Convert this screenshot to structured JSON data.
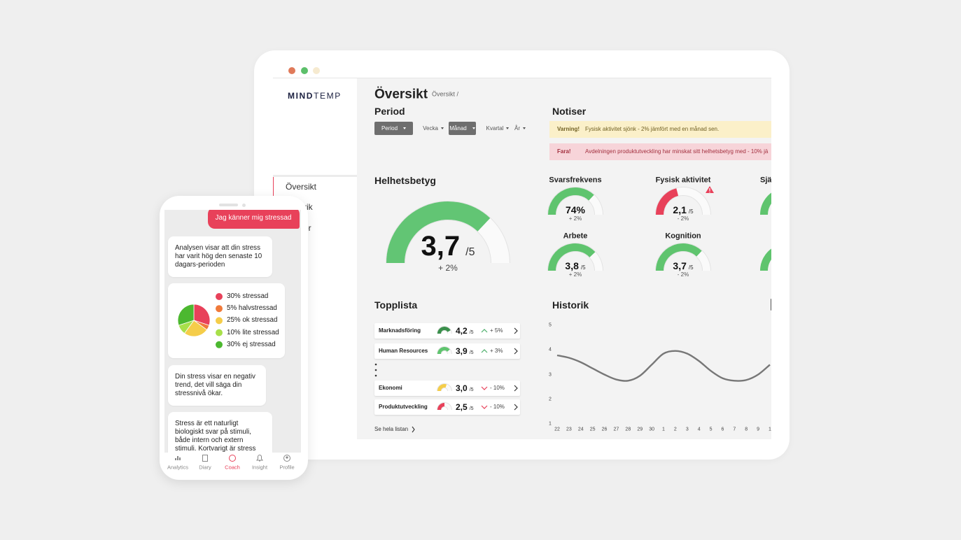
{
  "window": {
    "logo": {
      "bold": "MIND",
      "light": "TEMP"
    },
    "nav": [
      "Översikt",
      "rik",
      "ör"
    ]
  },
  "header": {
    "title": "Översikt",
    "breadcrumb": "Översikt /"
  },
  "period": {
    "title": "Period",
    "options": [
      "Period",
      "Vecka",
      "Månad",
      "Kvartal",
      "År"
    ]
  },
  "notices": {
    "title": "Notiser",
    "items": [
      {
        "label": "Varning!",
        "text": "Fysisk aktivitet sjönk - 2% jämfört med en månad sen."
      },
      {
        "label": "Fara!",
        "text": "Avdelningen produktutveckling har minskat sitt helhetsbetyg med - 10% jä"
      }
    ]
  },
  "overall": {
    "title": "Helhetsbetyg",
    "score": {
      "value": 3.7,
      "label": "3,7"
    },
    "scale": {
      "value": 5,
      "label": "/5"
    },
    "change": "+ 2%",
    "color": "#62c574"
  },
  "metrics": [
    {
      "title": "Svarsfrekvens",
      "score": {
        "value": 74,
        "label": "74%"
      },
      "scale": {
        "value": 100
      },
      "change": "+ 2%",
      "color": "#5fc46e"
    },
    {
      "title": "Fysisk aktivitet",
      "score": {
        "value": 2.1,
        "label": "2,1"
      },
      "scale": {
        "value": 5,
        "label": "/5"
      },
      "change": "- 2%",
      "color": "#e8415a",
      "alert": true
    },
    {
      "title": "Arbete",
      "score": {
        "value": 3.8,
        "label": "3,8"
      },
      "scale": {
        "value": 5,
        "label": "/5"
      },
      "change": "+ 2%",
      "color": "#5fc46e"
    },
    {
      "title": "Kognition",
      "score": {
        "value": 3.7,
        "label": "3,7"
      },
      "scale": {
        "value": 5,
        "label": "/5"
      },
      "change": "- 2%",
      "color": "#5fc46e"
    },
    {
      "title": "Sjä"
    }
  ],
  "ranking": {
    "title": "Topplista",
    "rows": [
      {
        "name": "Marknadsföring",
        "score": {
          "value": 4.2,
          "label": "4,2"
        },
        "scale": {
          "value": 5,
          "label": "/5"
        },
        "change": "+ 5%",
        "trend": "up",
        "color": "#3a8f4b"
      },
      {
        "name": "Human Resources",
        "score": {
          "value": 3.9,
          "label": "3,9"
        },
        "scale": {
          "value": 5,
          "label": "/5"
        },
        "change": "+ 3%",
        "trend": "up",
        "color": "#5fc46e"
      },
      {
        "name": "Ekonomi",
        "score": {
          "value": 3.0,
          "label": "3,0"
        },
        "scale": {
          "value": 5,
          "label": "/5"
        },
        "change": "- 10%",
        "trend": "down",
        "color": "#f5cd4a"
      },
      {
        "name": "Produktutveckling",
        "score": {
          "value": 2.5,
          "label": "2,5"
        },
        "scale": {
          "value": 5,
          "label": "/5"
        },
        "change": "- 10%",
        "trend": "down",
        "color": "#e8415a"
      }
    ],
    "more": "Se hela listan"
  },
  "history": {
    "title": "Historik",
    "chart": {
      "type": "line",
      "categories": [
        "22",
        "23",
        "24",
        "25",
        "26",
        "27",
        "28",
        "29",
        "30",
        "1",
        "2",
        "3",
        "4",
        "5",
        "6",
        "7",
        "8",
        "9",
        "1"
      ],
      "values": [
        3.78,
        3.68,
        3.5,
        3.25,
        3.0,
        2.8,
        2.75,
        2.95,
        3.4,
        3.85,
        3.96,
        3.85,
        3.55,
        3.15,
        2.85,
        2.75,
        2.78,
        3.0,
        3.4
      ],
      "ylim": [
        1,
        5
      ],
      "yticks": [
        1,
        2,
        3,
        4,
        5
      ],
      "color": "#777777"
    }
  },
  "phone": {
    "user_message": "Jag känner mig stressad",
    "messages": [
      "Analysen visar att din stress har varit hög den senaste 10 dagars-perioden",
      "Din stress visar en negativ trend, det vill säga din stressnivå ökar.",
      "Stress är ett naturligt biologiskt svar på stimuli, både intern och extern stimuli. Kortvarigt är stress"
    ],
    "pie": {
      "type": "pie",
      "values": [
        30,
        5,
        25,
        10,
        30
      ],
      "value_labels": [
        "30% stressad",
        "5% halvstressad",
        "25% ok stressad",
        "10% lite stressad",
        "30% ej stressad"
      ],
      "colors": [
        "#e8415a",
        "#f07a3a",
        "#f5cd4a",
        "#a8e04a",
        "#4cb830"
      ]
    },
    "tabs": [
      "Analytics",
      "Diary",
      "Coach",
      "Insight",
      "Profile"
    ],
    "active_tab": 2
  }
}
